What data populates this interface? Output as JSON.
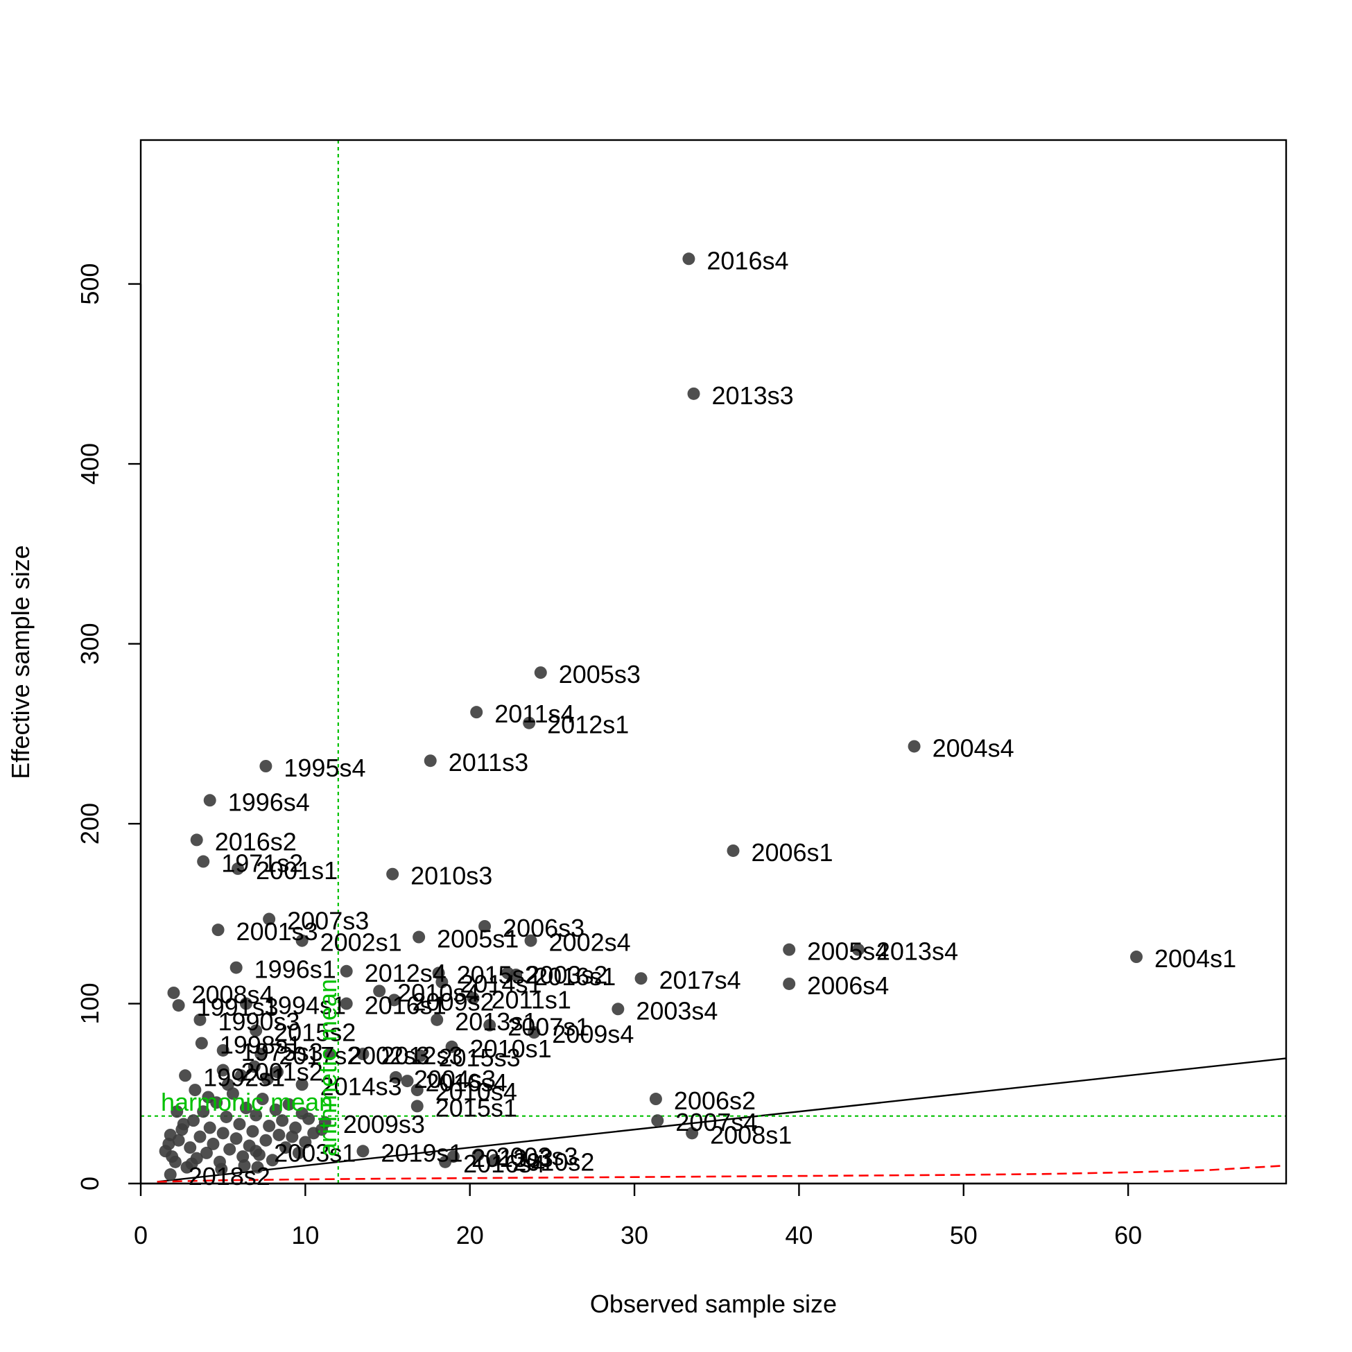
{
  "chart_data": {
    "type": "scatter",
    "xlabel": "Observed sample size",
    "ylabel": "Effective sample size",
    "xlim": [
      0,
      69.6
    ],
    "ylim": [
      0,
      580
    ],
    "x_ticks": [
      0,
      10,
      20,
      30,
      40,
      50,
      60
    ],
    "y_ticks": [
      0,
      100,
      200,
      300,
      400,
      500
    ],
    "grid": false,
    "colors": {
      "points": "#3c3c3c",
      "reference_line": "#000000",
      "mean_lines": "#00c000",
      "ess_curve": "#ff0000"
    },
    "labeled_points": [
      {
        "label": "2016s4",
        "x": 33.3,
        "y": 514
      },
      {
        "label": "2013s3",
        "x": 33.6,
        "y": 439
      },
      {
        "label": "2005s3",
        "x": 24.3,
        "y": 284
      },
      {
        "label": "2011s4",
        "x": 20.4,
        "y": 262
      },
      {
        "label": "2012s1",
        "x": 23.6,
        "y": 256
      },
      {
        "label": "2004s4",
        "x": 47.0,
        "y": 243
      },
      {
        "label": "2011s3",
        "x": 17.6,
        "y": 235
      },
      {
        "label": "1995s4",
        "x": 7.6,
        "y": 232
      },
      {
        "label": "1996s4",
        "x": 4.2,
        "y": 213
      },
      {
        "label": "2016s2",
        "x": 3.4,
        "y": 191
      },
      {
        "label": "2006s1",
        "x": 36.0,
        "y": 185
      },
      {
        "label": "1971s2",
        "x": 3.8,
        "y": 179
      },
      {
        "label": "2001s1",
        "x": 5.9,
        "y": 175
      },
      {
        "label": "2010s3",
        "x": 15.3,
        "y": 172
      },
      {
        "label": "2007s3",
        "x": 7.8,
        "y": 147
      },
      {
        "label": "2006s3",
        "x": 20.9,
        "y": 143
      },
      {
        "label": "2001s3",
        "x": 4.7,
        "y": 141
      },
      {
        "label": "2005s1",
        "x": 16.9,
        "y": 137
      },
      {
        "label": "2002s1",
        "x": 9.8,
        "y": 135
      },
      {
        "label": "2002s4",
        "x": 23.7,
        "y": 135
      },
      {
        "label": "2005s4",
        "x": 39.4,
        "y": 130
      },
      {
        "label": "2013s4",
        "x": 43.6,
        "y": 130
      },
      {
        "label": "2004s1",
        "x": 60.5,
        "y": 126
      },
      {
        "label": "1996s1",
        "x": 5.8,
        "y": 120
      },
      {
        "label": "2012s4",
        "x": 12.5,
        "y": 118
      },
      {
        "label": "2015s2",
        "x": 18.1,
        "y": 117
      },
      {
        "label": "2003s2",
        "x": 22.3,
        "y": 117
      },
      {
        "label": "2016s1",
        "x": 22.8,
        "y": 116
      },
      {
        "label": "2017s4",
        "x": 30.4,
        "y": 114
      },
      {
        "label": "2014s1",
        "x": 18.3,
        "y": 112
      },
      {
        "label": "2006s4",
        "x": 39.4,
        "y": 111
      },
      {
        "label": "2008s4",
        "x": 2.0,
        "y": 106
      },
      {
        "label": "2010s4",
        "x": 14.5,
        "y": 107
      },
      {
        "label": "2009s2",
        "x": 15.4,
        "y": 102
      },
      {
        "label": "2011s1",
        "x": 20.2,
        "y": 103
      },
      {
        "label": "1991s3",
        "x": 2.3,
        "y": 99
      },
      {
        "label": "1994s1",
        "x": 6.4,
        "y": 100
      },
      {
        "label": "2016s1",
        "x": 12.5,
        "y": 100
      },
      {
        "label": "2003s4",
        "x": 29.0,
        "y": 97
      },
      {
        "label": "1990s3",
        "x": 3.6,
        "y": 91
      },
      {
        "label": "2013s1",
        "x": 18.0,
        "y": 91
      },
      {
        "label": "2007s1",
        "x": 21.2,
        "y": 88
      },
      {
        "label": "2009s4",
        "x": 23.9,
        "y": 84
      },
      {
        "label": "2015s2",
        "x": 7.0,
        "y": 85
      },
      {
        "label": "1998s1",
        "x": 3.7,
        "y": 78
      },
      {
        "label": "2010s1",
        "x": 18.9,
        "y": 76
      },
      {
        "label": "1975s3",
        "x": 5.0,
        "y": 74
      },
      {
        "label": "2017s2",
        "x": 7.3,
        "y": 72
      },
      {
        "label": "2002s3",
        "x": 11.5,
        "y": 72
      },
      {
        "label": "2012s3",
        "x": 13.5,
        "y": 72
      },
      {
        "label": "2015s3",
        "x": 17.0,
        "y": 71
      },
      {
        "label": "1992s1",
        "x": 2.7,
        "y": 60
      },
      {
        "label": "2001s2",
        "x": 5.0,
        "y": 63
      },
      {
        "label": "2004s3",
        "x": 15.5,
        "y": 59
      },
      {
        "label": "2014s3",
        "x": 9.8,
        "y": 55
      },
      {
        "label": "2016s4",
        "x": 16.2,
        "y": 57
      },
      {
        "label": "2010s4",
        "x": 16.8,
        "y": 52
      },
      {
        "label": "2015s1",
        "x": 16.8,
        "y": 43
      },
      {
        "label": "2006s2",
        "x": 31.3,
        "y": 47
      },
      {
        "label": "2007s4",
        "x": 31.4,
        "y": 35
      },
      {
        "label": "2008s1",
        "x": 33.5,
        "y": 28
      },
      {
        "label": "2009s3",
        "x": 11.2,
        "y": 34
      },
      {
        "label": "2003s1",
        "x": 7.0,
        "y": 18
      },
      {
        "label": "2019s1",
        "x": 13.5,
        "y": 18
      },
      {
        "label": "2013s3",
        "x": 19.0,
        "y": 15
      },
      {
        "label": "2003s3",
        "x": 20.5,
        "y": 16
      },
      {
        "label": "2010s2",
        "x": 21.5,
        "y": 13
      },
      {
        "label": "2016s4",
        "x": 18.5,
        "y": 12
      },
      {
        "label": "2018s2",
        "x": 1.8,
        "y": 5
      }
    ],
    "unlabeled_points": [
      [
        1.5,
        18
      ],
      [
        1.7,
        22
      ],
      [
        1.9,
        15
      ],
      [
        2.1,
        12
      ],
      [
        2.3,
        24
      ],
      [
        2.5,
        30
      ],
      [
        2.8,
        9
      ],
      [
        3.0,
        20
      ],
      [
        3.2,
        35
      ],
      [
        3.4,
        14
      ],
      [
        3.6,
        26
      ],
      [
        3.8,
        40
      ],
      [
        4.0,
        17
      ],
      [
        4.2,
        31
      ],
      [
        4.4,
        22
      ],
      [
        4.6,
        45
      ],
      [
        4.8,
        12
      ],
      [
        5.0,
        28
      ],
      [
        5.2,
        37
      ],
      [
        5.4,
        19
      ],
      [
        5.6,
        50
      ],
      [
        5.8,
        25
      ],
      [
        6.0,
        33
      ],
      [
        6.2,
        15
      ],
      [
        6.4,
        42
      ],
      [
        6.6,
        21
      ],
      [
        6.8,
        29
      ],
      [
        7.0,
        38
      ],
      [
        7.2,
        16
      ],
      [
        7.4,
        47
      ],
      [
        7.6,
        24
      ],
      [
        7.8,
        32
      ],
      [
        8.0,
        13
      ],
      [
        8.2,
        41
      ],
      [
        8.4,
        27
      ],
      [
        8.6,
        35
      ],
      [
        8.8,
        20
      ],
      [
        9.0,
        44
      ],
      [
        9.2,
        26
      ],
      [
        9.4,
        31
      ],
      [
        9.6,
        17
      ],
      [
        9.8,
        39
      ],
      [
        10.0,
        23
      ],
      [
        10.2,
        36
      ],
      [
        10.5,
        28
      ],
      [
        11.0,
        30
      ],
      [
        5.3,
        55
      ],
      [
        6.1,
        60
      ],
      [
        4.1,
        48
      ],
      [
        3.3,
        52
      ],
      [
        2.2,
        40
      ],
      [
        6.9,
        65
      ],
      [
        7.7,
        58
      ],
      [
        8.3,
        62
      ],
      [
        1.8,
        27
      ],
      [
        2.6,
        33
      ],
      [
        3.1,
        11
      ],
      [
        4.9,
        8
      ],
      [
        6.3,
        10
      ],
      [
        7.1,
        9
      ]
    ],
    "reference_line": {
      "label": "",
      "slope": 1,
      "intercept": 0
    },
    "ess_curve": {
      "x": [
        1,
        5,
        10,
        15,
        20,
        25,
        30,
        35,
        40,
        45,
        50,
        55,
        60,
        65,
        69.6
      ],
      "y": [
        1.0,
        1.8,
        2.3,
        2.7,
        3.0,
        3.3,
        3.6,
        3.9,
        4.2,
        4.5,
        4.8,
        5.3,
        6.2,
        7.5,
        10.0
      ]
    },
    "harmonic_mean": {
      "label": "harmonic mean",
      "y": 37.5
    },
    "arithmetic_mean": {
      "label": "arithmetic mean",
      "x": 12.0
    }
  }
}
